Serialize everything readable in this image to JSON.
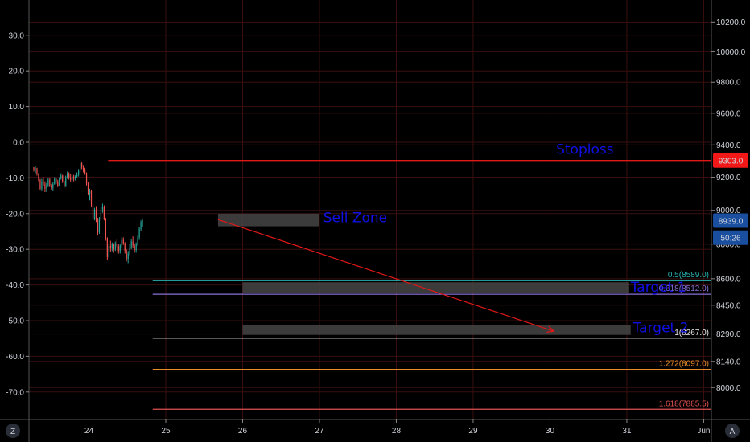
{
  "chart_data": {
    "type": "candlestick",
    "grid": true,
    "colors": {
      "background": "#000000",
      "grid": "#3a0f0f",
      "up": "#26a69a",
      "down": "#ef5350",
      "annotation_text": "#1010e6",
      "stoploss_line": "#e01818",
      "arrow": "#e01818",
      "zone_fill": "#454545",
      "price_tag_red": "#f21818",
      "price_tag_blue": "#1a4fa0"
    },
    "x_axis": {
      "ticks": [
        "24",
        "25",
        "26",
        "27",
        "28",
        "29",
        "30",
        "31",
        "Jun"
      ],
      "range": [
        23.22,
        32.1
      ]
    },
    "left_axis": {
      "ticks": [
        "30.0",
        "20.0",
        "10.0",
        "0.0",
        "-10.0",
        "-20.0",
        "-30.0",
        "-40.0",
        "-50.0",
        "-60.0",
        "-70.0"
      ],
      "ticks_values": [
        30,
        20,
        10,
        0,
        -10,
        -20,
        -30,
        -40,
        -50,
        -60,
        -70
      ]
    },
    "right_axis": {
      "scale": "log",
      "range": [
        7832,
        10350
      ],
      "ticks": [
        "10200.0",
        "10000.0",
        "9800.0",
        "9600.0",
        "9400.0",
        "9200.0",
        "9000.0",
        "8800.0",
        "8600.0",
        "8450.0",
        "8290.0",
        "8140.0",
        "8000.0"
      ],
      "ticks_values": [
        10200,
        10000,
        9800,
        9600,
        9400,
        9200,
        9000,
        8800,
        8600,
        8450,
        8290,
        8140,
        8000
      ],
      "price_tags": [
        {
          "label": "9303.0",
          "value": 9303,
          "color": "#f21818"
        },
        {
          "label": "8939.0",
          "value": 8939,
          "color": "#1a4fa0"
        },
        {
          "label": "50:26",
          "value": 8838,
          "color": "#1a4fa0"
        }
      ]
    },
    "candles": {
      "x_start": 23.22,
      "x_step": 0.0208,
      "ohlc": [
        [
          9260,
          9262,
          9235,
          9245
        ],
        [
          9245,
          9270,
          9225,
          9255
        ],
        [
          9255,
          9258,
          9210,
          9220
        ],
        [
          9220,
          9225,
          9175,
          9185
        ],
        [
          9185,
          9190,
          9120,
          9130
        ],
        [
          9130,
          9190,
          9115,
          9175
        ],
        [
          9175,
          9200,
          9145,
          9160
        ],
        [
          9160,
          9175,
          9110,
          9130
        ],
        [
          9130,
          9165,
          9110,
          9150
        ],
        [
          9150,
          9195,
          9140,
          9185
        ],
        [
          9185,
          9195,
          9140,
          9150
        ],
        [
          9150,
          9160,
          9120,
          9135
        ],
        [
          9135,
          9170,
          9115,
          9160
        ],
        [
          9160,
          9200,
          9155,
          9190
        ],
        [
          9190,
          9195,
          9160,
          9170
        ],
        [
          9170,
          9185,
          9140,
          9150
        ],
        [
          9150,
          9200,
          9145,
          9195
        ],
        [
          9195,
          9225,
          9185,
          9210
        ],
        [
          9210,
          9215,
          9165,
          9175
        ],
        [
          9175,
          9180,
          9135,
          9145
        ],
        [
          9145,
          9210,
          9140,
          9200
        ],
        [
          9200,
          9235,
          9190,
          9225
        ],
        [
          9225,
          9230,
          9185,
          9195
        ],
        [
          9195,
          9220,
          9170,
          9185
        ],
        [
          9185,
          9215,
          9175,
          9205
        ],
        [
          9205,
          9215,
          9175,
          9190
        ],
        [
          9190,
          9212,
          9180,
          9205
        ],
        [
          9205,
          9230,
          9195,
          9215
        ],
        [
          9215,
          9250,
          9205,
          9240
        ],
        [
          9240,
          9300,
          9230,
          9285
        ],
        [
          9285,
          9295,
          9250,
          9260
        ],
        [
          9260,
          9275,
          9230,
          9245
        ],
        [
          9245,
          9258,
          9215,
          9225
        ],
        [
          9225,
          9230,
          9150,
          9160
        ],
        [
          9160,
          9168,
          9090,
          9100
        ],
        [
          9100,
          9130,
          9060,
          9115
        ],
        [
          9115,
          9125,
          9020,
          9035
        ],
        [
          9035,
          9045,
          8930,
          8950
        ],
        [
          8950,
          9015,
          8940,
          9005
        ],
        [
          9005,
          9025,
          8930,
          8945
        ],
        [
          8945,
          8955,
          8850,
          8870
        ],
        [
          8870,
          8960,
          8860,
          8950
        ],
        [
          8950,
          9020,
          8940,
          9005
        ],
        [
          9005,
          9040,
          8985,
          9020
        ],
        [
          9020,
          9030,
          8940,
          8950
        ],
        [
          8950,
          8955,
          8820,
          8835
        ],
        [
          8835,
          8840,
          8710,
          8725
        ],
        [
          8725,
          8800,
          8720,
          8790
        ],
        [
          8790,
          8820,
          8755,
          8775
        ],
        [
          8775,
          8810,
          8760,
          8800
        ],
        [
          8800,
          8805,
          8750,
          8770
        ],
        [
          8770,
          8815,
          8760,
          8805
        ],
        [
          8805,
          8830,
          8780,
          8790
        ],
        [
          8790,
          8800,
          8745,
          8760
        ],
        [
          8760,
          8800,
          8745,
          8790
        ],
        [
          8790,
          8840,
          8775,
          8825
        ],
        [
          8825,
          8840,
          8795,
          8805
        ],
        [
          8805,
          8812,
          8745,
          8760
        ],
        [
          8760,
          8770,
          8700,
          8715
        ],
        [
          8715,
          8760,
          8690,
          8745
        ],
        [
          8745,
          8800,
          8735,
          8780
        ],
        [
          8780,
          8830,
          8770,
          8815
        ],
        [
          8815,
          8845,
          8780,
          8790
        ],
        [
          8790,
          8800,
          8750,
          8765
        ],
        [
          8765,
          8810,
          8750,
          8800
        ],
        [
          8800,
          8850,
          8790,
          8840
        ],
        [
          8840,
          8900,
          8825,
          8890
        ],
        [
          8890,
          8940,
          8875,
          8930
        ],
        [
          8930,
          8945,
          8900,
          8935
        ]
      ]
    },
    "horizontal_levels": [
      {
        "name": "stoploss",
        "value": 9303,
        "x_from": 24.25,
        "x_to": 32.1,
        "color": "#e01818"
      }
    ],
    "fib_levels": [
      {
        "label": "0.5(8589.0)",
        "value": 8589,
        "color": "#26b3b0"
      },
      {
        "label": "0.618(8512.0)",
        "value": 8512,
        "color": "#8a6fd6"
      },
      {
        "label": "1(8267.0)",
        "value": 8267,
        "color": "#e8e8e8"
      },
      {
        "label": "1.272(8097.0)",
        "value": 8097,
        "color": "#e98d2a"
      },
      {
        "label": "1.618(7885.5)",
        "value": 7885.5,
        "color": "#e05050"
      }
    ],
    "fib_x_from": 24.83,
    "zones": [
      {
        "name": "sell-zone",
        "x_from": 25.68,
        "x_to": 27.0,
        "y_top": 8980,
        "y_bottom": 8905
      },
      {
        "name": "target-1-zone",
        "x_from": 26.0,
        "x_to": 31.03,
        "y_top": 8580,
        "y_bottom": 8520
      },
      {
        "name": "target-2-zone",
        "x_from": 26.0,
        "x_to": 31.05,
        "y_top": 8338,
        "y_bottom": 8285
      }
    ],
    "arrow": {
      "x_from": 25.68,
      "y_from": 8945,
      "x_to": 30.05,
      "y_to": 8305
    },
    "annotations": [
      {
        "text": "Stoploss",
        "x": 30.08,
        "y": 9345
      },
      {
        "text": "Sell Zone",
        "x": 27.05,
        "y": 8930
      },
      {
        "text": "Target 1",
        "x": 31.05,
        "y": 8525
      },
      {
        "text": "Target 2",
        "x": 31.08,
        "y": 8300
      }
    ]
  },
  "footer": {
    "tv_logo": "Z",
    "auto_scale": "A"
  }
}
